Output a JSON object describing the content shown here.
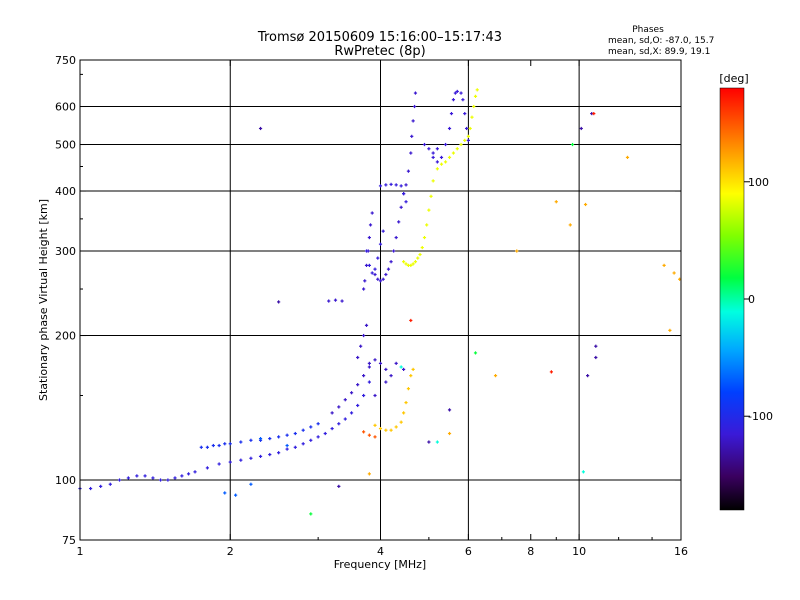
{
  "chart_data": {
    "type": "scatter",
    "title": "Tromsø 20150609 15:16:00–15:17:43",
    "subtitle": "RwPretec (8p)",
    "xlabel": "Frequency [MHz]",
    "ylabel": "Stationary phase Virtual Height [km]",
    "xscale": "log",
    "yscale": "log",
    "xlim": [
      1,
      16
    ],
    "ylim": [
      75,
      750
    ],
    "xticks": [
      1,
      2,
      4,
      6,
      8,
      10,
      16
    ],
    "xticklabels": [
      "1",
      "2",
      "4",
      "6",
      "8",
      "10",
      "16"
    ],
    "xgrid": [
      2,
      4,
      6,
      10
    ],
    "yticks": [
      75,
      100,
      200,
      300,
      400,
      500,
      600,
      750
    ],
    "yticklabels": [
      "75",
      "100",
      "200",
      "300",
      "400",
      "500",
      "600",
      "750"
    ],
    "ygrid": [
      100,
      200,
      300,
      400,
      500,
      600
    ],
    "stats": {
      "heading": "Phases",
      "line_o": "mean, sd,O: -87.0, 15.7",
      "line_x": "mean, sd,X: 89.9, 19.1"
    },
    "colorbar": {
      "label": "[deg]",
      "range": [
        -180,
        180
      ],
      "ticks": [
        100,
        0,
        -100
      ],
      "ticklabels": [
        "100",
        "0",
        "-100"
      ]
    },
    "series": [
      {
        "phase": -110,
        "points": [
          [
            1.0,
            96
          ],
          [
            1.05,
            96
          ],
          [
            1.1,
            97
          ],
          [
            1.15,
            98
          ],
          [
            1.2,
            100
          ],
          [
            1.25,
            101
          ],
          [
            1.3,
            102
          ],
          [
            1.35,
            102
          ],
          [
            1.4,
            101
          ],
          [
            1.45,
            100
          ],
          [
            1.5,
            100
          ],
          [
            1.55,
            101
          ],
          [
            1.6,
            102
          ],
          [
            1.65,
            103
          ],
          [
            1.7,
            104
          ],
          [
            1.8,
            106
          ],
          [
            1.9,
            108
          ],
          [
            2.0,
            109
          ],
          [
            2.1,
            110
          ],
          [
            2.2,
            111
          ],
          [
            2.3,
            112
          ],
          [
            2.4,
            113
          ],
          [
            2.5,
            114
          ],
          [
            2.6,
            116
          ],
          [
            2.7,
            117
          ],
          [
            2.8,
            119
          ],
          [
            2.9,
            121
          ],
          [
            3.0,
            123
          ],
          [
            3.1,
            125
          ],
          [
            3.2,
            128
          ],
          [
            3.3,
            131
          ],
          [
            3.4,
            134
          ],
          [
            3.5,
            138
          ],
          [
            3.6,
            143
          ],
          [
            3.7,
            150
          ],
          [
            3.8,
            160
          ]
        ]
      },
      {
        "phase": -95,
        "points": [
          [
            1.75,
            117
          ],
          [
            1.8,
            117
          ],
          [
            1.85,
            118
          ],
          [
            1.9,
            118
          ],
          [
            1.95,
            119
          ],
          [
            2.0,
            119
          ],
          [
            2.1,
            120
          ],
          [
            2.2,
            121
          ],
          [
            2.3,
            121
          ],
          [
            2.4,
            122
          ],
          [
            2.5,
            123
          ],
          [
            2.6,
            124
          ],
          [
            2.7,
            125
          ],
          [
            2.8,
            127
          ],
          [
            2.9,
            129
          ],
          [
            3.0,
            131
          ]
        ]
      },
      {
        "phase": -120,
        "points": [
          [
            3.2,
            138
          ],
          [
            3.3,
            142
          ],
          [
            3.4,
            147
          ],
          [
            3.5,
            152
          ],
          [
            3.6,
            158
          ],
          [
            3.7,
            165
          ],
          [
            3.8,
            172
          ],
          [
            3.9,
            178
          ],
          [
            4.0,
            175
          ],
          [
            4.1,
            170
          ],
          [
            4.2,
            165
          ],
          [
            3.6,
            180
          ],
          [
            3.65,
            190
          ],
          [
            3.7,
            200
          ],
          [
            3.75,
            210
          ],
          [
            3.8,
            175
          ],
          [
            3.9,
            150
          ],
          [
            4.1,
            160
          ],
          [
            4.3,
            175
          ],
          [
            4.45,
            170
          ]
        ]
      },
      {
        "phase": -118,
        "points": [
          [
            3.15,
            236
          ],
          [
            3.25,
            237
          ],
          [
            3.35,
            236
          ],
          [
            3.7,
            250
          ],
          [
            3.72,
            260
          ],
          [
            3.75,
            280
          ],
          [
            3.78,
            300
          ],
          [
            3.8,
            320
          ],
          [
            3.82,
            340
          ],
          [
            3.85,
            360
          ],
          [
            3.9,
            268
          ],
          [
            3.95,
            262
          ],
          [
            4.0,
            260
          ],
          [
            4.05,
            262
          ],
          [
            4.1,
            268
          ],
          [
            4.15,
            275
          ],
          [
            4.2,
            285
          ],
          [
            4.25,
            300
          ],
          [
            4.3,
            320
          ],
          [
            4.35,
            345
          ],
          [
            4.4,
            370
          ],
          [
            4.45,
            395
          ],
          [
            4.5,
            412
          ],
          [
            4.55,
            440
          ],
          [
            4.6,
            480
          ],
          [
            4.62,
            520
          ],
          [
            4.65,
            560
          ],
          [
            4.68,
            600
          ],
          [
            4.7,
            640
          ]
        ]
      },
      {
        "phase": -112,
        "points": [
          [
            4.0,
            410
          ],
          [
            4.1,
            412
          ],
          [
            4.2,
            413
          ],
          [
            4.3,
            412
          ],
          [
            4.4,
            410
          ],
          [
            4.45,
            395
          ],
          [
            4.5,
            380
          ],
          [
            3.75,
            300
          ],
          [
            3.8,
            280
          ],
          [
            3.85,
            270
          ],
          [
            3.9,
            275
          ],
          [
            3.95,
            290
          ],
          [
            4.0,
            310
          ],
          [
            4.05,
            330
          ]
        ]
      },
      {
        "phase": -115,
        "points": [
          [
            4.9,
            500
          ],
          [
            5.0,
            490
          ],
          [
            5.1,
            470
          ],
          [
            5.2,
            460
          ],
          [
            5.3,
            470
          ],
          [
            5.4,
            500
          ],
          [
            5.5,
            540
          ],
          [
            5.55,
            580
          ],
          [
            5.6,
            620
          ],
          [
            5.65,
            640
          ],
          [
            5.7,
            645
          ],
          [
            5.8,
            640
          ],
          [
            5.85,
            620
          ],
          [
            5.9,
            580
          ],
          [
            5.95,
            540
          ],
          [
            6.0,
            510
          ],
          [
            5.2,
            490
          ],
          [
            5.1,
            480
          ]
        ]
      },
      {
        "phase": 85,
        "points": [
          [
            4.45,
            285
          ],
          [
            4.5,
            282
          ],
          [
            4.55,
            280
          ],
          [
            4.6,
            280
          ],
          [
            4.65,
            282
          ],
          [
            4.7,
            285
          ],
          [
            4.75,
            290
          ],
          [
            4.8,
            295
          ],
          [
            4.85,
            305
          ],
          [
            4.9,
            320
          ],
          [
            4.95,
            340
          ],
          [
            5.0,
            365
          ],
          [
            5.05,
            390
          ],
          [
            5.1,
            420
          ],
          [
            5.2,
            445
          ],
          [
            5.3,
            455
          ],
          [
            5.4,
            460
          ],
          [
            5.5,
            470
          ],
          [
            5.6,
            480
          ],
          [
            5.7,
            490
          ],
          [
            5.8,
            500
          ],
          [
            5.9,
            510
          ],
          [
            6.0,
            520
          ],
          [
            6.05,
            540
          ],
          [
            6.1,
            570
          ],
          [
            6.15,
            600
          ],
          [
            6.2,
            630
          ],
          [
            6.25,
            650
          ]
        ]
      },
      {
        "phase": 110,
        "points": [
          [
            3.9,
            130
          ],
          [
            4.0,
            128
          ],
          [
            4.1,
            127
          ],
          [
            4.2,
            127
          ],
          [
            4.3,
            129
          ],
          [
            4.4,
            132
          ],
          [
            4.45,
            138
          ],
          [
            4.5,
            145
          ],
          [
            4.55,
            155
          ],
          [
            4.6,
            165
          ],
          [
            4.65,
            170
          ]
        ]
      },
      {
        "phase": 150,
        "points": [
          [
            3.7,
            126
          ],
          [
            3.8,
            124
          ],
          [
            3.9,
            123
          ]
        ]
      },
      {
        "phase": -70,
        "points": [
          [
            2.2,
            98
          ],
          [
            1.95,
            94
          ],
          [
            2.05,
            93
          ],
          [
            2.3,
            122
          ],
          [
            2.6,
            118
          ]
        ]
      },
      {
        "phase": 120,
        "points": [
          [
            3.8,
            103
          ],
          [
            5.5,
            125
          ],
          [
            6.8,
            165
          ],
          [
            7.5,
            300
          ],
          [
            9.0,
            380
          ],
          [
            9.6,
            340
          ],
          [
            10.3,
            375
          ],
          [
            12.5,
            470
          ],
          [
            14.8,
            280
          ],
          [
            15.5,
            270
          ],
          [
            15.9,
            262
          ],
          [
            15.2,
            205
          ]
        ]
      },
      {
        "phase": -130,
        "points": [
          [
            2.3,
            540
          ],
          [
            2.5,
            235
          ],
          [
            3.3,
            97
          ],
          [
            5.5,
            140
          ],
          [
            10.1,
            540
          ],
          [
            10.6,
            580
          ],
          [
            10.4,
            165
          ],
          [
            10.8,
            190
          ],
          [
            10.8,
            180
          ],
          [
            5.0,
            120
          ]
        ]
      },
      {
        "phase": 20,
        "points": [
          [
            2.9,
            85
          ],
          [
            6.2,
            184
          ],
          [
            9.7,
            500
          ]
        ]
      },
      {
        "phase": 170,
        "points": [
          [
            8.8,
            168
          ],
          [
            10.7,
            580
          ],
          [
            4.6,
            215
          ]
        ]
      },
      {
        "phase": -10,
        "points": [
          [
            10.2,
            104
          ],
          [
            5.2,
            120
          ],
          [
            4.4,
            172
          ]
        ]
      }
    ]
  }
}
